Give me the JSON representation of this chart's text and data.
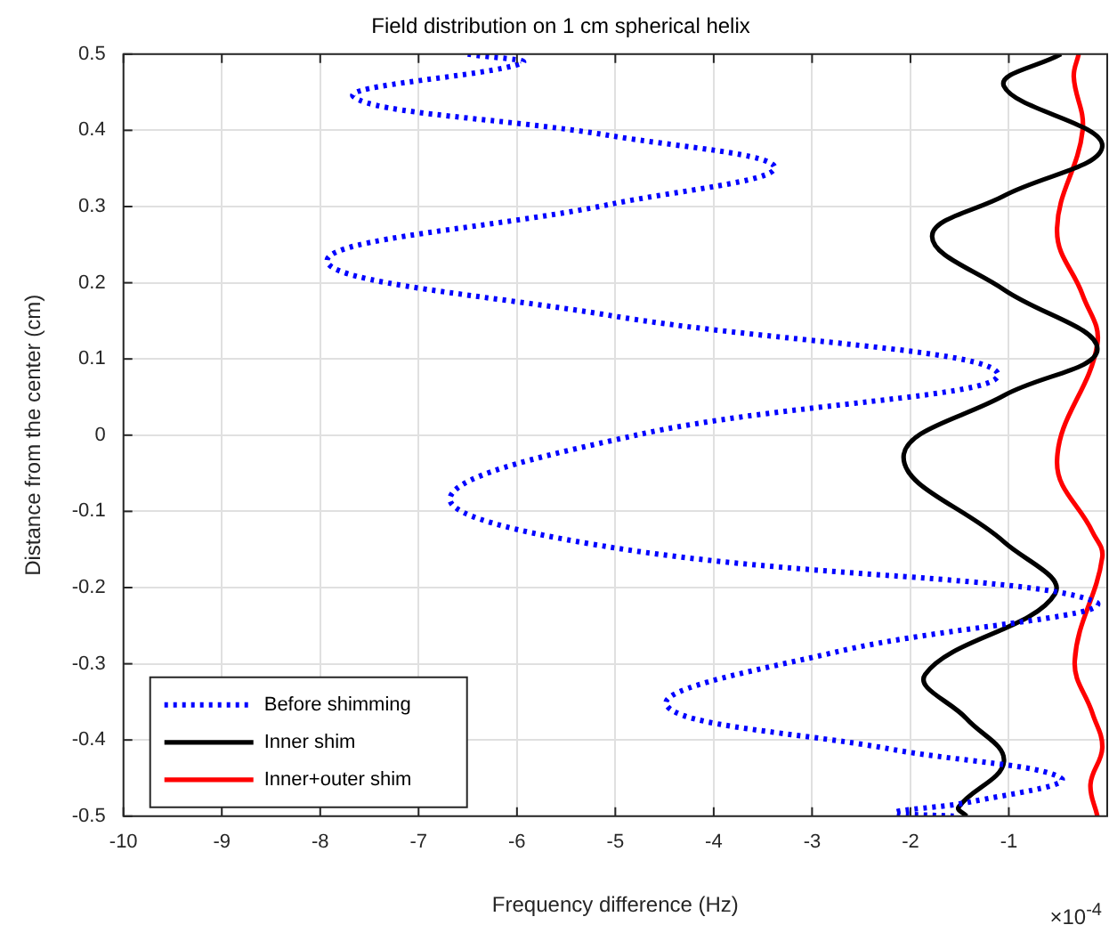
{
  "chart_data": {
    "type": "line",
    "title": "Field distribution on 1 cm spherical helix",
    "xlabel": "Frequency difference (Hz)",
    "ylabel": "Distance from the center (cm)",
    "annotations": [
      "×10$^{-4}$"
    ],
    "xlim": [
      -10,
      0
    ],
    "xticks": [
      -10,
      -9,
      -8,
      -7,
      -6,
      -5,
      -4,
      -3,
      -2,
      -1
    ],
    "ylim": [
      -0.5,
      0.5
    ],
    "yticks": [
      -0.5,
      -0.4,
      -0.3,
      -0.2,
      -0.1,
      0,
      0.1,
      0.2,
      0.3,
      0.4,
      0.5
    ],
    "grid": true,
    "legend": "bottom left",
    "marker": "none",
    "series": [
      {
        "name": "Before shimming",
        "color": "#0000ff",
        "line_style": "dotted",
        "x": [
          -6.5,
          -5.95,
          -7.66,
          -5.05,
          -3.38,
          -5.05,
          -7.93,
          -5.05,
          -1.11,
          -4.79,
          -6.68,
          -5.05,
          -0.1,
          -2.74,
          -4.48,
          -2.2,
          -0.47,
          -1.38,
          -2.16,
          -1.56
        ],
        "values": [
          0.5,
          0.488,
          0.444,
          0.393,
          0.351,
          0.303,
          0.229,
          0.157,
          0.08,
          0,
          -0.082,
          -0.147,
          -0.22,
          -0.284,
          -0.354,
          -0.412,
          -0.45,
          -0.481,
          -0.495,
          -0.5
        ]
      },
      {
        "name": "Inner shim",
        "color": "#000000",
        "line_style": "solid",
        "x": [
          -0.47,
          -1.05,
          -0.05,
          -1.05,
          -1.78,
          -1.05,
          -0.1,
          -1.05,
          -2.07,
          -1.05,
          -0.53,
          -1.85,
          -1.43,
          -1.05,
          -1.51,
          -1.43
        ],
        "values": [
          0.5,
          0.458,
          0.38,
          0.314,
          0.261,
          0.191,
          0.113,
          0.052,
          -0.029,
          -0.14,
          -0.208,
          -0.314,
          -0.372,
          -0.428,
          -0.488,
          -0.5
        ]
      },
      {
        "name": "Inner+outer shim",
        "color": "#ff0000",
        "line_style": "solid",
        "x": [
          -0.29,
          -0.34,
          -0.25,
          -0.51,
          -0.25,
          -0.1,
          -0.51,
          -0.15,
          -0.05,
          -0.33,
          -0.15,
          -0.05,
          -0.17,
          -0.1
        ],
        "values": [
          0.5,
          0.47,
          0.4,
          0.268,
          0.184,
          0.12,
          -0.034,
          -0.127,
          -0.16,
          -0.296,
          -0.365,
          -0.41,
          -0.458,
          -0.5
        ]
      }
    ]
  }
}
